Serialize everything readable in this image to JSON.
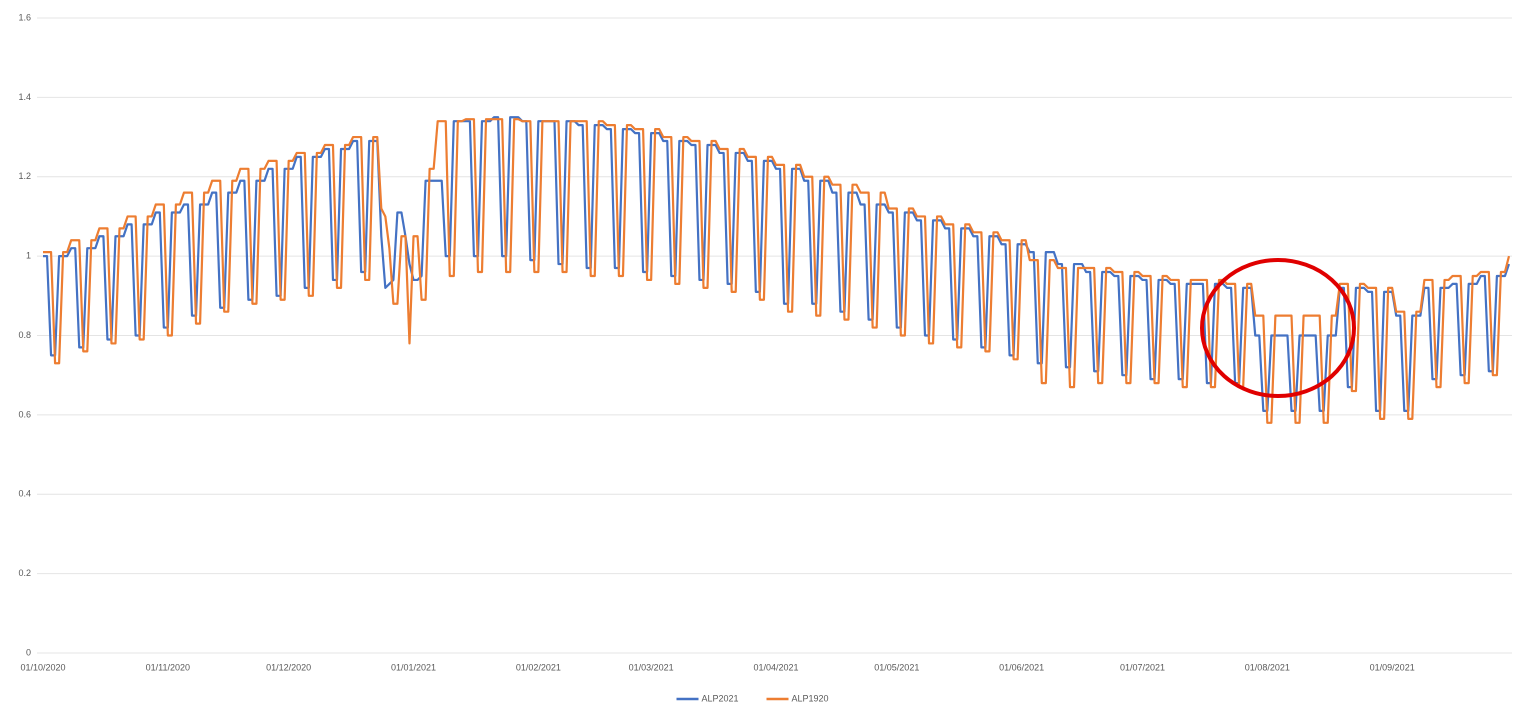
{
  "chart_data": {
    "type": "line",
    "categories": [
      "01/10/2020",
      null,
      null,
      null,
      null,
      null,
      null,
      null,
      null,
      null,
      null,
      null,
      null,
      null,
      null,
      null,
      null,
      null,
      null,
      null,
      null,
      null,
      null,
      null,
      null,
      null,
      null,
      null,
      null,
      null,
      null,
      "01/11/2020",
      null,
      null,
      null,
      null,
      null,
      null,
      null,
      null,
      null,
      null,
      null,
      null,
      null,
      null,
      null,
      null,
      null,
      null,
      null,
      null,
      null,
      null,
      null,
      null,
      null,
      null,
      null,
      null,
      null,
      "01/12/2020",
      null,
      null,
      null,
      null,
      null,
      null,
      null,
      null,
      null,
      null,
      null,
      null,
      null,
      null,
      null,
      null,
      null,
      null,
      null,
      null,
      null,
      null,
      null,
      null,
      null,
      null,
      null,
      null,
      null,
      null,
      "01/01/2021",
      null,
      null,
      null,
      null,
      null,
      null,
      null,
      null,
      null,
      null,
      null,
      null,
      null,
      null,
      null,
      null,
      null,
      null,
      null,
      null,
      null,
      null,
      null,
      null,
      null,
      null,
      null,
      null,
      null,
      null,
      "01/02/2021",
      null,
      null,
      null,
      null,
      null,
      null,
      null,
      null,
      null,
      null,
      null,
      null,
      null,
      null,
      null,
      null,
      null,
      null,
      null,
      null,
      null,
      null,
      null,
      null,
      null,
      null,
      null,
      "01/03/2021",
      null,
      null,
      null,
      null,
      null,
      null,
      null,
      null,
      null,
      null,
      null,
      null,
      null,
      null,
      null,
      null,
      null,
      null,
      null,
      null,
      null,
      null,
      null,
      null,
      null,
      null,
      null,
      null,
      null,
      null,
      "01/04/2021",
      null,
      null,
      null,
      null,
      null,
      null,
      null,
      null,
      null,
      null,
      null,
      null,
      null,
      null,
      null,
      null,
      null,
      null,
      null,
      null,
      null,
      null,
      null,
      null,
      null,
      null,
      null,
      null,
      null,
      "01/05/2021",
      null,
      null,
      null,
      null,
      null,
      null,
      null,
      null,
      null,
      null,
      null,
      null,
      null,
      null,
      null,
      null,
      null,
      null,
      null,
      null,
      null,
      null,
      null,
      null,
      null,
      null,
      null,
      null,
      null,
      null,
      "01/06/2021",
      null,
      null,
      null,
      null,
      null,
      null,
      null,
      null,
      null,
      null,
      null,
      null,
      null,
      null,
      null,
      null,
      null,
      null,
      null,
      null,
      null,
      null,
      null,
      null,
      null,
      null,
      null,
      null,
      null,
      "01/07/2021",
      null,
      null,
      null,
      null,
      null,
      null,
      null,
      null,
      null,
      null,
      null,
      null,
      null,
      null,
      null,
      null,
      null,
      null,
      null,
      null,
      null,
      null,
      null,
      null,
      null,
      null,
      null,
      null,
      null,
      null,
      "01/08/2021",
      null,
      null,
      null,
      null,
      null,
      null,
      null,
      null,
      null,
      null,
      null,
      null,
      null,
      null,
      null,
      null,
      null,
      null,
      null,
      null,
      null,
      null,
      null,
      null,
      null,
      null,
      null,
      null,
      null,
      null,
      "01/09/2021",
      null,
      null,
      null,
      null,
      null,
      null,
      null,
      null,
      null,
      null,
      null,
      null,
      null,
      null,
      null,
      null,
      null,
      null,
      null,
      null,
      null,
      null,
      null,
      null,
      null,
      null,
      null,
      null,
      null
    ],
    "series": [
      {
        "name": "ALP2021",
        "color": "#4472c4",
        "values": [
          1.0,
          1.0,
          0.75,
          0.75,
          1.0,
          1.0,
          1.0,
          1.02,
          1.02,
          0.77,
          0.77,
          1.02,
          1.02,
          1.02,
          1.05,
          1.05,
          0.79,
          0.79,
          1.05,
          1.05,
          1.05,
          1.08,
          1.08,
          0.8,
          0.8,
          1.08,
          1.08,
          1.08,
          1.11,
          1.11,
          0.82,
          0.82,
          1.11,
          1.11,
          1.11,
          1.13,
          1.13,
          0.85,
          0.85,
          1.13,
          1.13,
          1.13,
          1.16,
          1.16,
          0.87,
          0.87,
          1.16,
          1.16,
          1.16,
          1.19,
          1.19,
          0.89,
          0.89,
          1.19,
          1.19,
          1.19,
          1.22,
          1.22,
          0.9,
          0.9,
          1.22,
          1.22,
          1.22,
          1.25,
          1.25,
          0.92,
          0.92,
          1.25,
          1.25,
          1.25,
          1.27,
          1.27,
          0.94,
          0.94,
          1.27,
          1.27,
          1.27,
          1.29,
          1.29,
          0.96,
          0.96,
          1.29,
          1.29,
          1.29,
          1.05,
          0.92,
          0.93,
          0.94,
          1.11,
          1.11,
          1.05,
          0.98,
          0.94,
          0.94,
          0.95,
          1.19,
          1.19,
          1.19,
          1.19,
          1.19,
          1.0,
          1.0,
          1.34,
          1.34,
          1.34,
          1.34,
          1.34,
          1.0,
          1.0,
          1.34,
          1.34,
          1.34,
          1.35,
          1.35,
          1.0,
          1.0,
          1.35,
          1.35,
          1.35,
          1.34,
          1.34,
          0.99,
          0.99,
          1.34,
          1.34,
          1.34,
          1.34,
          1.34,
          0.98,
          0.98,
          1.34,
          1.34,
          1.34,
          1.33,
          1.33,
          0.97,
          0.97,
          1.33,
          1.33,
          1.33,
          1.32,
          1.32,
          0.97,
          0.97,
          1.32,
          1.32,
          1.32,
          1.31,
          1.31,
          0.96,
          0.96,
          1.31,
          1.31,
          1.31,
          1.29,
          1.29,
          0.95,
          0.95,
          1.29,
          1.29,
          1.29,
          1.28,
          1.28,
          0.94,
          0.94,
          1.28,
          1.28,
          1.28,
          1.26,
          1.26,
          0.93,
          0.93,
          1.26,
          1.26,
          1.26,
          1.24,
          1.24,
          0.91,
          0.91,
          1.24,
          1.24,
          1.24,
          1.22,
          1.22,
          0.88,
          0.88,
          1.22,
          1.22,
          1.22,
          1.19,
          1.19,
          0.88,
          0.88,
          1.19,
          1.19,
          1.19,
          1.16,
          1.16,
          0.86,
          0.86,
          1.16,
          1.16,
          1.16,
          1.13,
          1.13,
          0.84,
          0.84,
          1.13,
          1.13,
          1.13,
          1.11,
          1.11,
          0.82,
          0.82,
          1.11,
          1.11,
          1.11,
          1.09,
          1.09,
          0.8,
          0.8,
          1.09,
          1.09,
          1.09,
          1.07,
          1.07,
          0.79,
          0.79,
          1.07,
          1.07,
          1.07,
          1.05,
          1.05,
          0.77,
          0.77,
          1.05,
          1.05,
          1.05,
          1.03,
          1.03,
          0.75,
          0.75,
          1.03,
          1.03,
          1.03,
          1.01,
          1.01,
          0.73,
          0.73,
          1.01,
          1.01,
          1.01,
          0.98,
          0.98,
          0.72,
          0.72,
          0.98,
          0.98,
          0.98,
          0.96,
          0.96,
          0.71,
          0.71,
          0.96,
          0.96,
          0.96,
          0.95,
          0.95,
          0.7,
          0.7,
          0.95,
          0.95,
          0.95,
          0.94,
          0.94,
          0.69,
          0.69,
          0.94,
          0.94,
          0.94,
          0.93,
          0.93,
          0.69,
          0.69,
          0.93,
          0.93,
          0.93,
          0.93,
          0.93,
          0.68,
          0.68,
          0.93,
          0.93,
          0.93,
          0.92,
          0.92,
          0.68,
          0.68,
          0.92,
          0.92,
          0.92,
          0.8,
          0.8,
          0.61,
          0.61,
          0.8,
          0.8,
          0.8,
          0.8,
          0.8,
          0.61,
          0.61,
          0.8,
          0.8,
          0.8,
          0.8,
          0.8,
          0.61,
          0.61,
          0.8,
          0.8,
          0.8,
          0.92,
          0.92,
          0.67,
          0.67,
          0.92,
          0.92,
          0.92,
          0.91,
          0.91,
          0.61,
          0.61,
          0.91,
          0.91,
          0.91,
          0.85,
          0.85,
          0.61,
          0.61,
          0.85,
          0.85,
          0.85,
          0.92,
          0.92,
          0.69,
          0.69,
          0.92,
          0.92,
          0.92,
          0.93,
          0.93,
          0.7,
          0.7,
          0.93,
          0.93,
          0.93,
          0.95,
          0.95,
          0.71,
          0.71,
          0.95,
          0.95,
          0.95,
          0.98
        ]
      },
      {
        "name": "ALP1920",
        "color": "#ed7d31",
        "values": [
          1.01,
          1.01,
          1.01,
          0.73,
          0.73,
          1.01,
          1.01,
          1.04,
          1.04,
          1.04,
          0.76,
          0.76,
          1.04,
          1.04,
          1.07,
          1.07,
          1.07,
          0.78,
          0.78,
          1.07,
          1.07,
          1.1,
          1.1,
          1.1,
          0.79,
          0.79,
          1.1,
          1.1,
          1.13,
          1.13,
          1.13,
          0.8,
          0.8,
          1.13,
          1.13,
          1.16,
          1.16,
          1.16,
          0.83,
          0.83,
          1.16,
          1.16,
          1.19,
          1.19,
          1.19,
          0.86,
          0.86,
          1.19,
          1.19,
          1.22,
          1.22,
          1.22,
          0.88,
          0.88,
          1.22,
          1.22,
          1.24,
          1.24,
          1.24,
          0.89,
          0.89,
          1.24,
          1.24,
          1.26,
          1.26,
          1.26,
          0.9,
          0.9,
          1.26,
          1.26,
          1.28,
          1.28,
          1.28,
          0.92,
          0.92,
          1.28,
          1.28,
          1.3,
          1.3,
          1.3,
          0.94,
          0.94,
          1.3,
          1.3,
          1.12,
          1.1,
          1.02,
          0.88,
          0.88,
          1.05,
          1.05,
          0.78,
          1.05,
          1.05,
          0.89,
          0.89,
          1.22,
          1.22,
          1.34,
          1.34,
          1.34,
          0.95,
          0.95,
          1.34,
          1.34,
          1.345,
          1.345,
          1.345,
          0.96,
          0.96,
          1.345,
          1.345,
          1.345,
          1.345,
          1.345,
          0.96,
          0.96,
          1.345,
          1.345,
          1.34,
          1.34,
          1.34,
          0.96,
          0.96,
          1.34,
          1.34,
          1.34,
          1.34,
          1.34,
          0.96,
          0.96,
          1.34,
          1.34,
          1.34,
          1.34,
          1.34,
          0.95,
          0.95,
          1.34,
          1.34,
          1.33,
          1.33,
          1.33,
          0.95,
          0.95,
          1.33,
          1.33,
          1.32,
          1.32,
          1.32,
          0.94,
          0.94,
          1.32,
          1.32,
          1.3,
          1.3,
          1.3,
          0.93,
          0.93,
          1.3,
          1.3,
          1.29,
          1.29,
          1.29,
          0.92,
          0.92,
          1.29,
          1.29,
          1.27,
          1.27,
          1.27,
          0.91,
          0.91,
          1.27,
          1.27,
          1.25,
          1.25,
          1.25,
          0.89,
          0.89,
          1.25,
          1.25,
          1.23,
          1.23,
          1.23,
          0.86,
          0.86,
          1.23,
          1.23,
          1.2,
          1.2,
          1.2,
          0.85,
          0.85,
          1.2,
          1.2,
          1.18,
          1.18,
          1.18,
          0.84,
          0.84,
          1.18,
          1.18,
          1.16,
          1.16,
          1.16,
          0.82,
          0.82,
          1.16,
          1.16,
          1.12,
          1.12,
          1.12,
          0.8,
          0.8,
          1.12,
          1.12,
          1.1,
          1.1,
          1.1,
          0.78,
          0.78,
          1.1,
          1.1,
          1.08,
          1.08,
          1.08,
          0.77,
          0.77,
          1.08,
          1.08,
          1.06,
          1.06,
          1.06,
          0.76,
          0.76,
          1.06,
          1.06,
          1.04,
          1.04,
          1.04,
          0.74,
          0.74,
          1.04,
          1.04,
          0.99,
          0.99,
          0.99,
          0.68,
          0.68,
          0.99,
          0.99,
          0.97,
          0.97,
          0.97,
          0.67,
          0.67,
          0.97,
          0.97,
          0.97,
          0.97,
          0.97,
          0.68,
          0.68,
          0.97,
          0.97,
          0.96,
          0.96,
          0.96,
          0.68,
          0.68,
          0.96,
          0.96,
          0.95,
          0.95,
          0.95,
          0.68,
          0.68,
          0.95,
          0.95,
          0.94,
          0.94,
          0.94,
          0.67,
          0.67,
          0.94,
          0.94,
          0.94,
          0.94,
          0.94,
          0.67,
          0.67,
          0.94,
          0.94,
          0.93,
          0.93,
          0.93,
          0.67,
          0.67,
          0.93,
          0.93,
          0.85,
          0.85,
          0.85,
          0.58,
          0.58,
          0.85,
          0.85,
          0.85,
          0.85,
          0.85,
          0.58,
          0.58,
          0.85,
          0.85,
          0.85,
          0.85,
          0.85,
          0.58,
          0.58,
          0.85,
          0.85,
          0.93,
          0.93,
          0.93,
          0.66,
          0.66,
          0.93,
          0.93,
          0.92,
          0.92,
          0.92,
          0.59,
          0.59,
          0.92,
          0.92,
          0.86,
          0.86,
          0.86,
          0.59,
          0.59,
          0.86,
          0.86,
          0.94,
          0.94,
          0.94,
          0.67,
          0.67,
          0.94,
          0.94,
          0.95,
          0.95,
          0.95,
          0.68,
          0.68,
          0.95,
          0.95,
          0.96,
          0.96,
          0.96,
          0.7,
          0.7,
          0.96,
          0.96,
          1.0
        ]
      }
    ],
    "ylim": [
      0,
      1.6
    ],
    "yticks": [
      0,
      0.2,
      0.4,
      0.6,
      0.8,
      1,
      1.2,
      1.4,
      1.6
    ],
    "grid": true,
    "legend": "bottom"
  }
}
